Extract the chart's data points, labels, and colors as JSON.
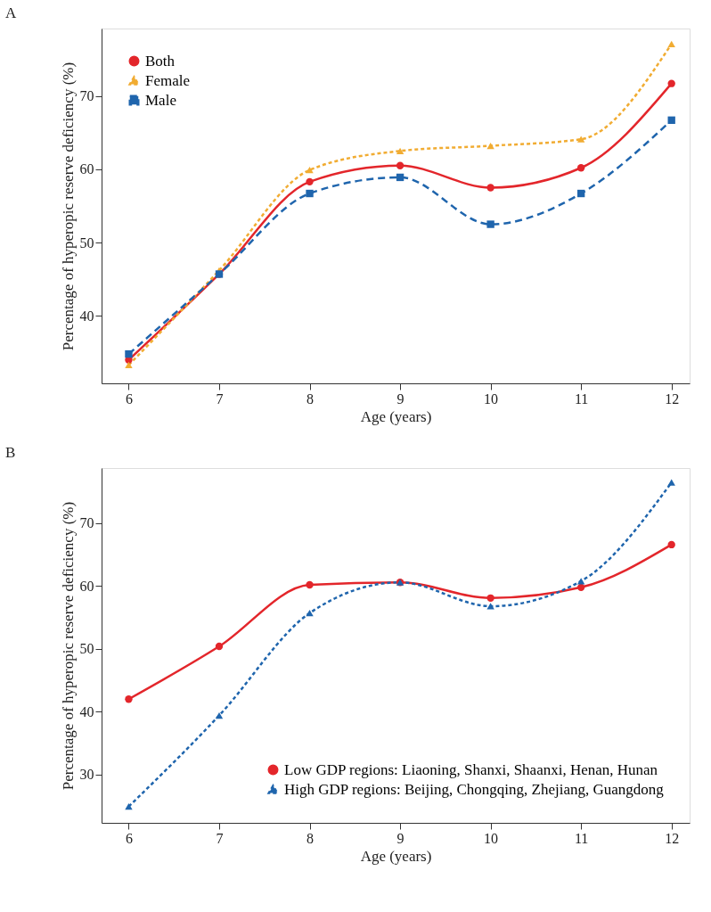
{
  "chart_data": [
    {
      "type": "line",
      "title": "A",
      "xlabel": "Age (years)",
      "ylabel": "Percentage of hyperopic reserve deficiency (%)",
      "x": [
        6,
        7,
        8,
        9,
        10,
        11,
        12
      ],
      "xlim": [
        5.7,
        12.2
      ],
      "xticks": [
        6,
        7,
        8,
        9,
        10,
        11,
        12
      ],
      "ylim": [
        30.8,
        79.2
      ],
      "yticks": [
        40,
        50,
        60,
        70
      ],
      "grid": false,
      "legend": "top left",
      "series": [
        {
          "name": "Both",
          "color": "#e3262b",
          "marker": "circle",
          "line_style": "solid",
          "values": [
            34.0,
            45.7,
            58.3,
            60.5,
            57.5,
            60.2,
            71.7
          ]
        },
        {
          "name": "Female",
          "color": "#f1ac32",
          "marker": "triangle",
          "line_style": "dotted",
          "values": [
            33.3,
            46.2,
            59.9,
            62.5,
            63.2,
            64.1,
            77.1
          ]
        },
        {
          "name": "Male",
          "color": "#1f65ad",
          "marker": "square",
          "line_style": "dashed",
          "values": [
            34.8,
            45.7,
            56.7,
            58.9,
            52.5,
            56.7,
            66.7
          ]
        }
      ]
    },
    {
      "type": "line",
      "title": "B",
      "xlabel": "Age (years)",
      "ylabel": "Percentage of hyperopic reserve deficiency (%)",
      "x": [
        6,
        7,
        8,
        9,
        10,
        11,
        12
      ],
      "xlim": [
        5.7,
        12.2
      ],
      "xticks": [
        6,
        7,
        8,
        9,
        10,
        11,
        12
      ],
      "ylim": [
        22.3,
        78.8
      ],
      "yticks": [
        30,
        40,
        50,
        60,
        70
      ],
      "grid": false,
      "legend": "bottom right",
      "series": [
        {
          "name": "Low GDP regions: Liaoning, Shanxi, Shaanxi, Henan, Hunan",
          "color": "#e3262b",
          "marker": "circle",
          "line_style": "solid",
          "values": [
            42.0,
            50.4,
            60.2,
            60.6,
            58.1,
            59.8,
            66.6
          ]
        },
        {
          "name": "High GDP regions: Beijing, Chongqing, Zhejiang, Guangdong",
          "color": "#1f65ad",
          "marker": "triangle",
          "line_style": "dotted",
          "values": [
            24.9,
            39.4,
            55.7,
            60.6,
            56.8,
            60.8,
            76.5
          ]
        }
      ]
    }
  ]
}
